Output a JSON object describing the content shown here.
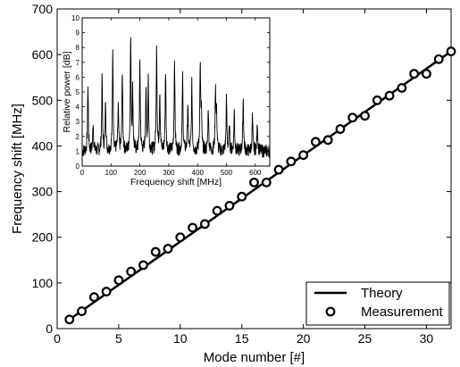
{
  "chart_data": [
    {
      "type": "line",
      "xlabel": "Mode number [#]",
      "ylabel": "Frequency shift [MHz]",
      "xlim": [
        0,
        32
      ],
      "ylim": [
        0,
        700
      ],
      "xticks": [
        0,
        5,
        10,
        15,
        20,
        25,
        30
      ],
      "yticks": [
        0,
        100,
        200,
        300,
        400,
        500,
        600,
        700
      ],
      "grid": false,
      "legend_position": "bottom-right",
      "series": [
        {
          "name": "Theory",
          "style": "line",
          "color": "#000000",
          "x": [
            1,
            32
          ],
          "y": [
            20,
            607
          ]
        },
        {
          "name": "Measurement",
          "style": "marker",
          "color": "#000000",
          "x": [
            1,
            2,
            3,
            4,
            5,
            6,
            7,
            8,
            9,
            10,
            11,
            12,
            13,
            14,
            15,
            16,
            17,
            18,
            19,
            20,
            21,
            22,
            23,
            24,
            25,
            26,
            27,
            28,
            29,
            30,
            31,
            32
          ],
          "y": [
            20,
            38,
            69,
            81,
            106,
            125,
            139,
            168,
            175,
            200,
            221,
            229,
            258,
            269,
            289,
            320,
            320,
            348,
            366,
            380,
            409,
            413,
            437,
            462,
            466,
            500,
            510,
            527,
            558,
            558,
            590,
            607
          ]
        }
      ]
    },
    {
      "type": "line",
      "placement": "inset",
      "xlabel": "Frequency shift [MHz]",
      "ylabel": "Relative power [dB]",
      "xlim": [
        0,
        650
      ],
      "ylim": [
        0,
        10
      ],
      "xticks": [
        0,
        100,
        200,
        300,
        400,
        500,
        600
      ],
      "yticks": [
        0,
        1,
        2,
        3,
        4,
        5,
        6,
        7,
        8,
        9,
        10
      ],
      "peaks": {
        "x": [
          20,
          38,
          69,
          81,
          106,
          125,
          139,
          168,
          175,
          200,
          221,
          229,
          258,
          269,
          289,
          320,
          348,
          366,
          380,
          409,
          413,
          437,
          462,
          466,
          500,
          510,
          527,
          558,
          590,
          607
        ],
        "y": [
          5.5,
          3.0,
          6.0,
          4.5,
          8.0,
          4.0,
          6.5,
          8.6,
          5.0,
          7.0,
          5.2,
          6.0,
          8.3,
          5.0,
          6.5,
          7.3,
          6.0,
          4.2,
          5.5,
          6.8,
          3.5,
          4.0,
          5.3,
          3.2,
          4.5,
          2.5,
          3.7,
          4.6,
          3.3,
          3.0
        ]
      },
      "baseline": 1.0
    }
  ]
}
